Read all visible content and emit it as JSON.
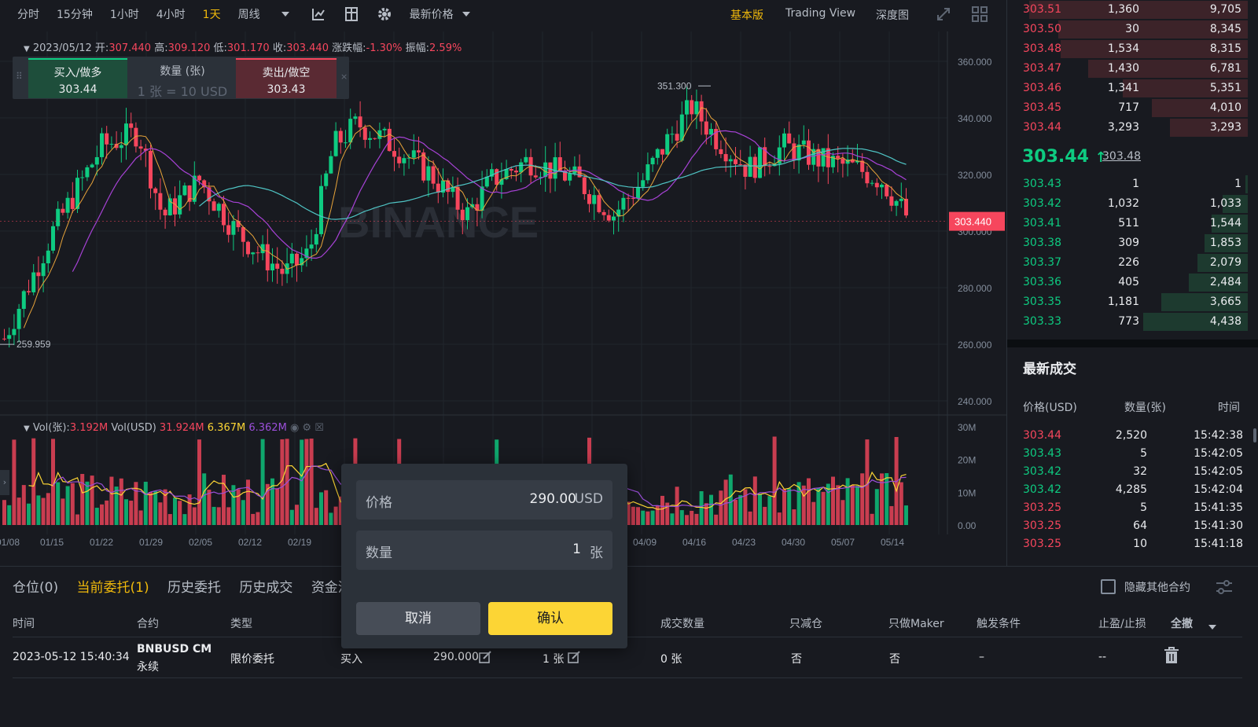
{
  "toolbar": {
    "timeframes": [
      "分时",
      "15分钟",
      "1小时",
      "4小时",
      "1天",
      "周线"
    ],
    "active_timeframe": "1天",
    "price_type": "最新价格",
    "views": [
      "基本版",
      "Trading View",
      "深度图"
    ],
    "active_view": "基本版"
  },
  "chart_header": {
    "date": "2023/05/12",
    "open_label": "开:",
    "open": "307.440",
    "high_label": "高:",
    "high": "309.120",
    "low_label": "低:",
    "low": "301.170",
    "close_label": "收:",
    "close": "303.440",
    "change_label": "涨跌幅:",
    "change": "-1.30%",
    "amp_label": "振幅:",
    "amp": "2.59%"
  },
  "trade_widget": {
    "buy_label": "买入/做多",
    "buy_price": "303.44",
    "qty_label": "数量 (张)",
    "qty_hint": "1 张 = 10 USD",
    "sell_label": "卖出/做空",
    "sell_price": "303.43"
  },
  "chart_labels": {
    "high_marker": "351.300",
    "low_marker": "259.959",
    "current_price": "303.440",
    "price_ticks": [
      "360.000",
      "340.000",
      "320.000",
      "300.000",
      "280.000",
      "260.000",
      "240.000"
    ],
    "vol_ticks": [
      "30M",
      "20M",
      "10M",
      "0.00"
    ],
    "date_ticks": [
      "01/08",
      "01/15",
      "01/22",
      "01/29",
      "02/05",
      "02/12",
      "02/19",
      "04/09",
      "04/16",
      "04/23",
      "04/30",
      "05/07",
      "05/14"
    ],
    "watermark": "BINANCE"
  },
  "vol_legend": {
    "label1": "Vol(张):",
    "v1": "3.192M",
    "label2": "Vol(USD)",
    "v2": "31.924M",
    "v3": "6.367M",
    "v4": "6.362M"
  },
  "orderbook": {
    "asks": [
      {
        "price": "303.51",
        "qty": "1,360",
        "total": "9,705",
        "depth": 0.96
      },
      {
        "price": "303.50",
        "qty": "30",
        "total": "8,345",
        "depth": 0.83
      },
      {
        "price": "303.48",
        "qty": "1,534",
        "total": "8,315",
        "depth": 0.82
      },
      {
        "price": "303.47",
        "qty": "1,430",
        "total": "6,781",
        "depth": 0.7
      },
      {
        "price": "303.46",
        "qty": "1,341",
        "total": "5,351",
        "depth": 0.55
      },
      {
        "price": "303.45",
        "qty": "717",
        "total": "4,010",
        "depth": 0.42
      },
      {
        "price": "303.44",
        "qty": "3,293",
        "total": "3,293",
        "depth": 0.34
      }
    ],
    "mid_price": "303.44",
    "mid_arrow": "↑",
    "mark_price": "303.48",
    "bids": [
      {
        "price": "303.43",
        "qty": "1",
        "total": "1",
        "depth": 0.01
      },
      {
        "price": "303.42",
        "qty": "1,032",
        "total": "1,033",
        "depth": 0.11
      },
      {
        "price": "303.41",
        "qty": "511",
        "total": "1,544",
        "depth": 0.16
      },
      {
        "price": "303.38",
        "qty": "309",
        "total": "1,853",
        "depth": 0.19
      },
      {
        "price": "303.37",
        "qty": "226",
        "total": "2,079",
        "depth": 0.22
      },
      {
        "price": "303.36",
        "qty": "405",
        "total": "2,484",
        "depth": 0.26
      },
      {
        "price": "303.35",
        "qty": "1,181",
        "total": "3,665",
        "depth": 0.38
      },
      {
        "price": "303.33",
        "qty": "773",
        "total": "4,438",
        "depth": 0.46
      }
    ]
  },
  "recent_trades": {
    "title": "最新成交",
    "headers": [
      "价格(USD)",
      "数量(张)",
      "时间"
    ],
    "rows": [
      {
        "price": "303.44",
        "qty": "2,520",
        "time": "15:42:38",
        "side": "dn"
      },
      {
        "price": "303.43",
        "qty": "5",
        "time": "15:42:05",
        "side": "up"
      },
      {
        "price": "303.42",
        "qty": "32",
        "time": "15:42:05",
        "side": "up"
      },
      {
        "price": "303.42",
        "qty": "4,285",
        "time": "15:42:04",
        "side": "up"
      },
      {
        "price": "303.25",
        "qty": "5",
        "time": "15:41:35",
        "side": "dn"
      },
      {
        "price": "303.25",
        "qty": "64",
        "time": "15:41:30",
        "side": "dn"
      },
      {
        "price": "303.25",
        "qty": "10",
        "time": "15:41:18",
        "side": "dn"
      }
    ]
  },
  "bottom": {
    "tabs": [
      "仓位(0)",
      "当前委托(1)",
      "历史委托",
      "历史成交",
      "资金流"
    ],
    "active_tab": "当前委托(1)",
    "hide_other": "隐藏其他合约",
    "headers": [
      "时间",
      "合约",
      "类型",
      "成交数量",
      "只减仓",
      "只做Maker",
      "触发条件",
      "止盈/止损",
      "全撤"
    ],
    "order": {
      "time": "2023-05-12 15:40:34",
      "symbol": "BNBUSD CM",
      "symbol_sub": "永续",
      "type": "限价委托",
      "side": "买入",
      "price": "290.000",
      "qty": "1 张",
      "filled": "0 张",
      "reduce_only": "否",
      "maker_only": "否",
      "trigger": "–",
      "tpsl": "--"
    }
  },
  "modal": {
    "price_label": "价格",
    "price_value": "290.00",
    "price_unit": "USD",
    "qty_label": "数量",
    "qty_value": "1",
    "qty_unit": "张",
    "cancel": "取消",
    "confirm": "确认"
  },
  "colors": {
    "up": "#0ecb81",
    "down": "#f6465d",
    "accent": "#f0b90b",
    "bg": "#181a20",
    "panel": "#2b3139"
  }
}
